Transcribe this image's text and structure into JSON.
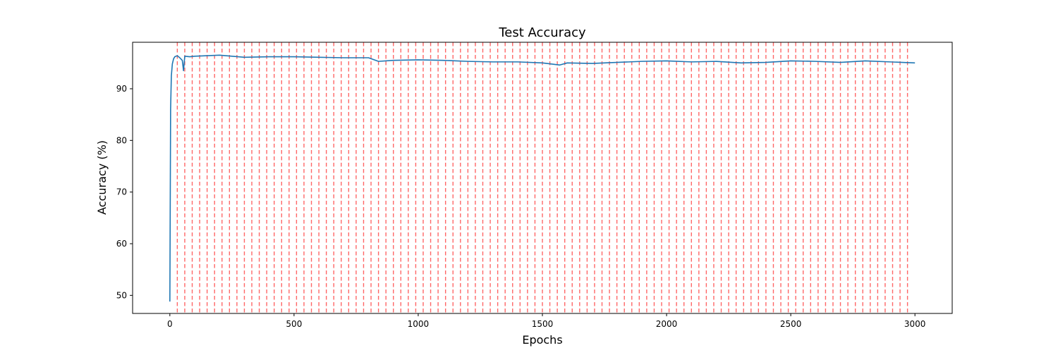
{
  "chart_data": {
    "type": "line",
    "title": "Test Accuracy",
    "xlabel": "Epochs",
    "ylabel": "Accuracy (%)",
    "xlim": [
      -150,
      3150
    ],
    "ylim": [
      46.5,
      99.0
    ],
    "xticks": [
      0,
      500,
      1000,
      1500,
      2000,
      2500,
      3000
    ],
    "yticks": [
      50,
      60,
      70,
      80,
      90
    ],
    "grid": false,
    "legend": "none",
    "series": [
      {
        "color": "#1f77b4",
        "x": [
          0,
          3,
          6,
          10,
          15,
          20,
          30,
          40,
          50,
          55,
          60,
          80,
          100,
          150,
          200,
          250,
          300,
          400,
          500,
          600,
          700,
          800,
          840,
          900,
          1000,
          1100,
          1200,
          1300,
          1400,
          1500,
          1570,
          1600,
          1700,
          1800,
          1900,
          2000,
          2100,
          2200,
          2300,
          2400,
          2500,
          2600,
          2700,
          2800,
          2900,
          3000
        ],
        "values": [
          48.8,
          86.0,
          92.5,
          94.8,
          95.8,
          96.2,
          96.4,
          96.0,
          95.5,
          93.5,
          96.3,
          96.2,
          96.3,
          96.4,
          96.5,
          96.3,
          96.1,
          96.2,
          96.2,
          96.1,
          96.0,
          96.0,
          95.3,
          95.5,
          95.6,
          95.5,
          95.3,
          95.2,
          95.2,
          95.0,
          94.6,
          95.0,
          94.9,
          95.1,
          95.3,
          95.4,
          95.2,
          95.3,
          95.0,
          95.1,
          95.4,
          95.3,
          95.1,
          95.4,
          95.2,
          95.0
        ]
      }
    ],
    "vlines": {
      "color": "#ff0000",
      "style": "dashed",
      "x": [
        30,
        60,
        90,
        120,
        150,
        180,
        210,
        240,
        270,
        300,
        330,
        360,
        390,
        420,
        450,
        480,
        510,
        540,
        570,
        600,
        630,
        660,
        690,
        720,
        750,
        780,
        810,
        840,
        870,
        900,
        930,
        960,
        990,
        1020,
        1050,
        1080,
        1110,
        1140,
        1170,
        1200,
        1230,
        1260,
        1290,
        1320,
        1350,
        1380,
        1410,
        1440,
        1470,
        1500,
        1530,
        1560,
        1590,
        1620,
        1650,
        1680,
        1710,
        1740,
        1770,
        1800,
        1830,
        1860,
        1890,
        1920,
        1950,
        1980,
        2010,
        2040,
        2070,
        2100,
        2130,
        2160,
        2190,
        2220,
        2250,
        2280,
        2310,
        2340,
        2370,
        2400,
        2430,
        2460,
        2490,
        2520,
        2550,
        2580,
        2610,
        2640,
        2670,
        2700,
        2730,
        2760,
        2790,
        2820,
        2850,
        2880,
        2910,
        2940,
        2970
      ]
    }
  }
}
